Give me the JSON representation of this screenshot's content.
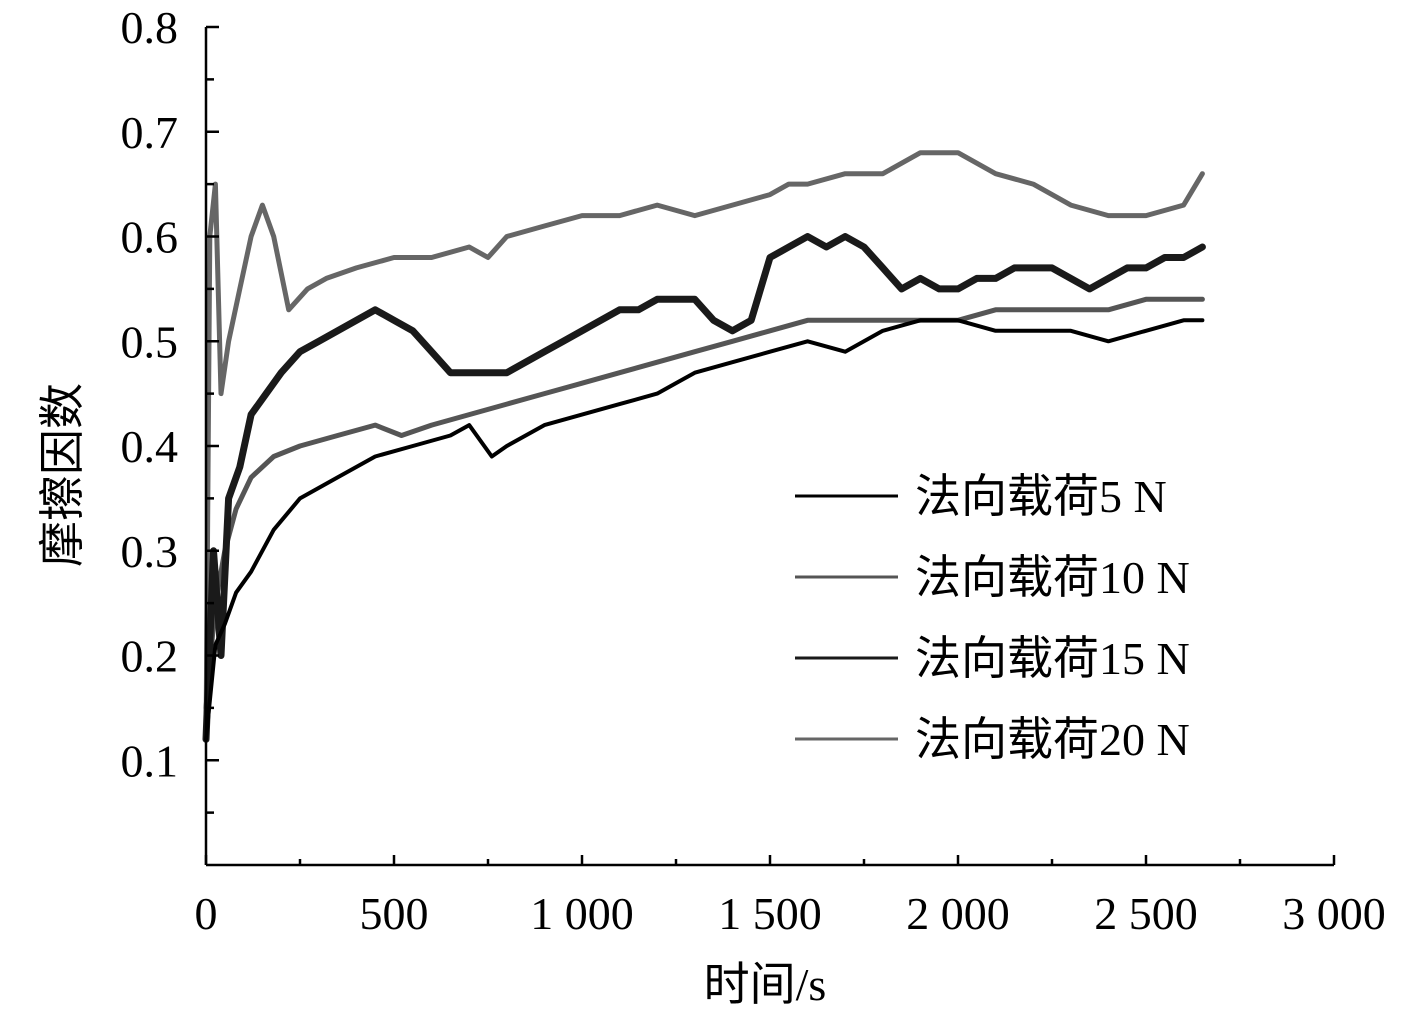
{
  "chart_data": {
    "type": "line",
    "title": "",
    "xlabel": "时间/s",
    "ylabel": "摩擦因数",
    "xlim": [
      0,
      3000
    ],
    "ylim": [
      0,
      0.8
    ],
    "x_ticks": [
      0,
      500,
      1000,
      1500,
      2000,
      2500,
      3000
    ],
    "x_tick_labels": [
      "0",
      "500",
      "1 000",
      "1 500",
      "2 000",
      "2 500",
      "3 000"
    ],
    "y_ticks": [
      0.1,
      0.2,
      0.3,
      0.4,
      0.5,
      0.6,
      0.7,
      0.8
    ],
    "y_tick_labels": [
      "0.1",
      "0.2",
      "0.3",
      "0.4",
      "0.5",
      "0.6",
      "0.7",
      "0.8"
    ],
    "grid": false,
    "legend_position": "center-right",
    "series": [
      {
        "name": "法向载荷5 N",
        "color": "#000000",
        "x": [
          0,
          25,
          50,
          80,
          120,
          180,
          250,
          350,
          450,
          550,
          650,
          700,
          760,
          800,
          900,
          1000,
          1100,
          1200,
          1300,
          1400,
          1500,
          1600,
          1700,
          1800,
          1900,
          2000,
          2100,
          2200,
          2300,
          2400,
          2500,
          2600,
          2650
        ],
        "y": [
          0.12,
          0.21,
          0.23,
          0.26,
          0.28,
          0.32,
          0.35,
          0.37,
          0.39,
          0.4,
          0.41,
          0.42,
          0.39,
          0.4,
          0.42,
          0.43,
          0.44,
          0.45,
          0.47,
          0.48,
          0.49,
          0.5,
          0.49,
          0.51,
          0.52,
          0.52,
          0.51,
          0.51,
          0.51,
          0.5,
          0.51,
          0.52,
          0.52
        ]
      },
      {
        "name": "法向载荷10 N",
        "color": "#555555",
        "x": [
          0,
          25,
          50,
          80,
          120,
          180,
          250,
          350,
          450,
          520,
          600,
          700,
          800,
          900,
          1000,
          1100,
          1200,
          1300,
          1400,
          1500,
          1600,
          1700,
          1800,
          1900,
          2000,
          2100,
          2200,
          2300,
          2400,
          2500,
          2600,
          2650
        ],
        "y": [
          0.15,
          0.25,
          0.3,
          0.34,
          0.37,
          0.39,
          0.4,
          0.41,
          0.42,
          0.41,
          0.42,
          0.43,
          0.44,
          0.45,
          0.46,
          0.47,
          0.48,
          0.49,
          0.5,
          0.51,
          0.52,
          0.52,
          0.52,
          0.52,
          0.52,
          0.53,
          0.53,
          0.53,
          0.53,
          0.54,
          0.54,
          0.54
        ]
      },
      {
        "name": "法向载荷15 N",
        "color": "#1a1a1a",
        "x": [
          0,
          20,
          40,
          60,
          90,
          120,
          160,
          200,
          250,
          300,
          350,
          400,
          450,
          500,
          550,
          600,
          650,
          700,
          750,
          800,
          850,
          900,
          950,
          1000,
          1050,
          1100,
          1150,
          1200,
          1250,
          1300,
          1350,
          1400,
          1450,
          1500,
          1550,
          1600,
          1650,
          1700,
          1750,
          1800,
          1850,
          1900,
          1950,
          2000,
          2050,
          2100,
          2150,
          2200,
          2250,
          2300,
          2350,
          2400,
          2450,
          2500,
          2550,
          2600,
          2650
        ],
        "y": [
          0.12,
          0.3,
          0.2,
          0.35,
          0.38,
          0.43,
          0.45,
          0.47,
          0.49,
          0.5,
          0.51,
          0.52,
          0.53,
          0.52,
          0.51,
          0.49,
          0.47,
          0.47,
          0.47,
          0.47,
          0.48,
          0.49,
          0.5,
          0.51,
          0.52,
          0.53,
          0.53,
          0.54,
          0.54,
          0.54,
          0.52,
          0.51,
          0.52,
          0.58,
          0.59,
          0.6,
          0.59,
          0.6,
          0.59,
          0.57,
          0.55,
          0.56,
          0.55,
          0.55,
          0.56,
          0.56,
          0.57,
          0.57,
          0.57,
          0.56,
          0.55,
          0.56,
          0.57,
          0.57,
          0.58,
          0.58,
          0.59
        ]
      },
      {
        "name": "法向载荷20 N",
        "color": "#666666",
        "x": [
          0,
          10,
          25,
          40,
          60,
          90,
          120,
          150,
          180,
          220,
          270,
          320,
          400,
          500,
          600,
          700,
          750,
          800,
          900,
          1000,
          1100,
          1200,
          1300,
          1400,
          1500,
          1550,
          1600,
          1700,
          1800,
          1900,
          2000,
          2100,
          2200,
          2300,
          2400,
          2500,
          2600,
          2650
        ],
        "y": [
          0.12,
          0.6,
          0.65,
          0.45,
          0.5,
          0.55,
          0.6,
          0.63,
          0.6,
          0.53,
          0.55,
          0.56,
          0.57,
          0.58,
          0.58,
          0.59,
          0.58,
          0.6,
          0.61,
          0.62,
          0.62,
          0.63,
          0.62,
          0.63,
          0.64,
          0.65,
          0.65,
          0.66,
          0.66,
          0.68,
          0.68,
          0.66,
          0.65,
          0.63,
          0.62,
          0.62,
          0.63,
          0.66
        ]
      }
    ]
  }
}
